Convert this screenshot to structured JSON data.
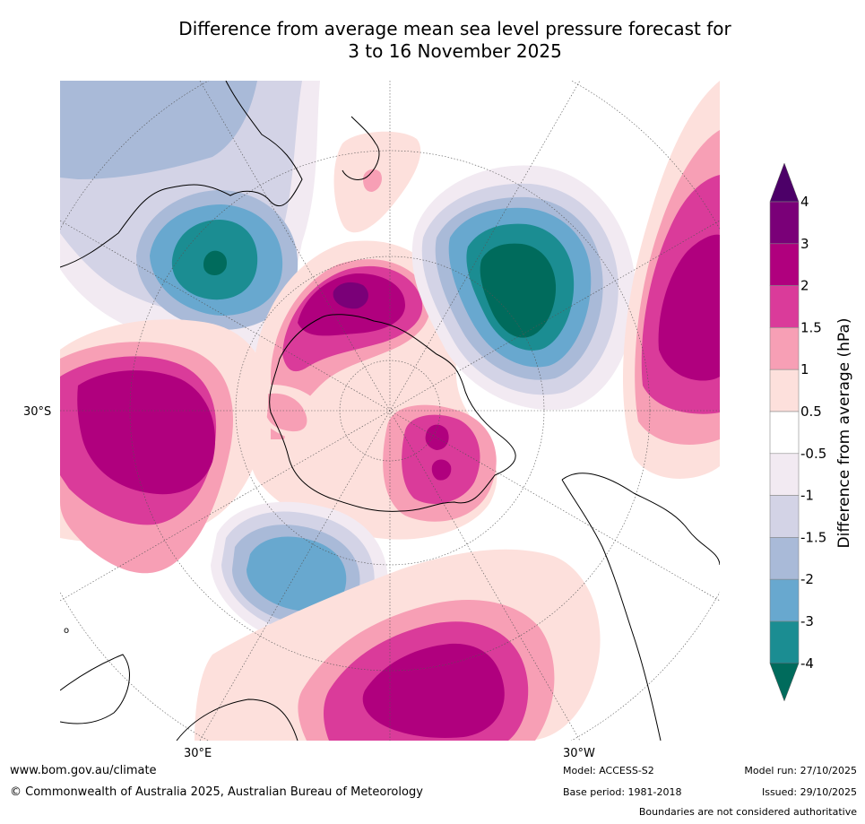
{
  "title_line1": "Difference from average mean sea level pressure forecast for",
  "title_line2": "3 to 16 November 2025",
  "map": {
    "lat_label": "30°S",
    "lon_label_east": "30°E",
    "lon_label_west": "30°W",
    "small_marker": "o"
  },
  "colorbar": {
    "title": "Difference from average (hPa)",
    "tick_labels": [
      "4",
      "3",
      "2",
      "1.5",
      "1",
      "0.5",
      "-0.5",
      "-1",
      "-1.5",
      "-2",
      "-3",
      "-4"
    ],
    "bins": [
      {
        "range": "3 to 4",
        "color": "#7a0078"
      },
      {
        "range": "2 to 3",
        "color": "#b0007e"
      },
      {
        "range": "1.5 to 2",
        "color": "#da3b9a"
      },
      {
        "range": "1 to 1.5",
        "color": "#f79fb5"
      },
      {
        "range": "0.5 to 1",
        "color": "#fde0dc"
      },
      {
        "range": "-0.5 to 0.5",
        "color": "#ffffff"
      },
      {
        "range": "-1 to -0.5",
        "color": "#f2eaf2"
      },
      {
        "range": "-1.5 to -1",
        "color": "#d3d3e6"
      },
      {
        "range": "-2 to -1.5",
        "color": "#a9bad8"
      },
      {
        "range": "-3 to -2",
        "color": "#68a8cf"
      },
      {
        "range": "-4 to -3",
        "color": "#1b8d92"
      }
    ],
    "over_color": "#4c0068",
    "under_color": "#006b5c"
  },
  "footer": {
    "url": "www.bom.gov.au/climate",
    "copyright": "© Commonwealth of Australia 2025, Australian Bureau of Meteorology",
    "model": "Model: ACCESS-S2",
    "base_period": "Base period: 1981-2018",
    "model_run": "Model run: 27/10/2025",
    "issued": "Issued: 29/10/2025",
    "disclaimer": "Boundaries are not considered authoritative"
  }
}
